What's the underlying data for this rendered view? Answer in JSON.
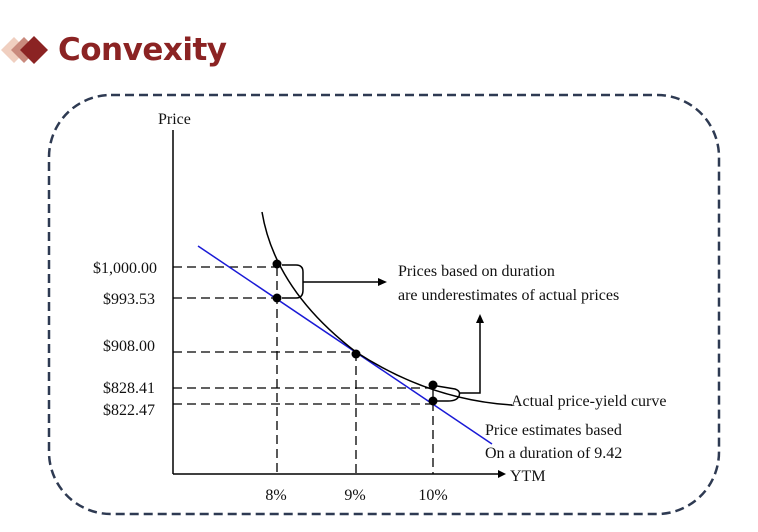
{
  "slide": {
    "title": "Convexity",
    "title_color": "#8b2323",
    "accent_colors": [
      "#8b2323",
      "#c98a7d",
      "#f0cfc0"
    ]
  },
  "chart": {
    "y_axis_label": "Price",
    "x_axis_label": "YTM",
    "price_labels": [
      "$1,000.00",
      "$993.53",
      "$908.00",
      "$828.41",
      "$822.47"
    ],
    "yield_labels": [
      "8%",
      "9%",
      "10%"
    ],
    "annotation_underestimate_line1": "Prices based on duration",
    "annotation_underestimate_line2": "are underestimates of actual prices",
    "curve_label": "Actual price-yield curve",
    "tangent_label_line1": "Price estimates based",
    "tangent_label_line2": "On a duration of 9.42",
    "curve_color": "#000000",
    "tangent_color": "#1a1ad6"
  },
  "chart_data": {
    "type": "line",
    "x": [
      8,
      9,
      10
    ],
    "xlabel": "YTM",
    "ylabel": "Price",
    "series": [
      {
        "name": "Actual price-yield curve",
        "values": [
          1000.0,
          908.0,
          828.41
        ]
      },
      {
        "values": [
          993.53,
          908.0,
          822.47
        ]
      }
    ]
  }
}
